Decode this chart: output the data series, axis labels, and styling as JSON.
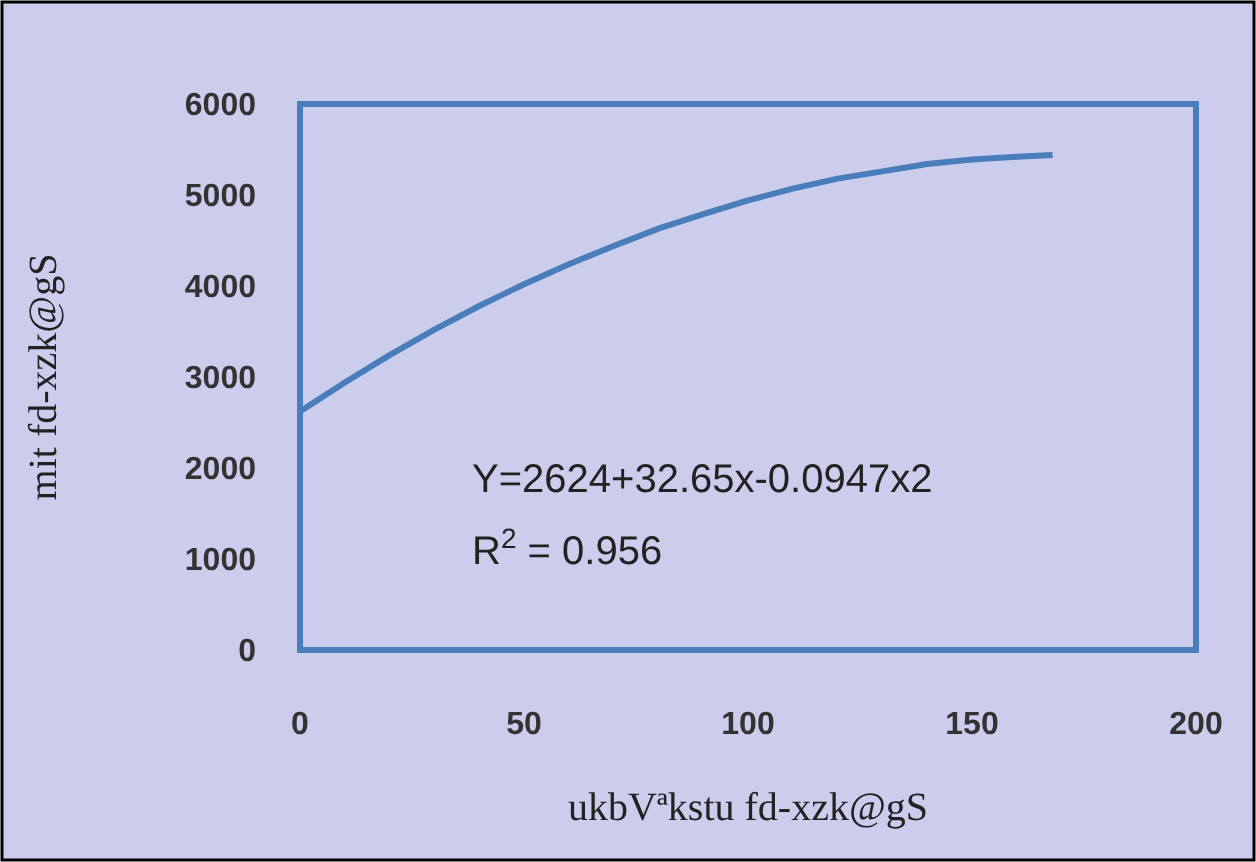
{
  "chart_data": {
    "type": "line",
    "xlabel": "ukbVªkstu fd-xzk@gS",
    "ylabel": "mit fd-xzk@gS",
    "x": [
      0,
      10,
      20,
      30,
      40,
      50,
      60,
      70,
      80,
      90,
      100,
      110,
      120,
      130,
      140,
      150,
      160,
      168
    ],
    "series": [
      {
        "color": "#4a7ebb",
        "values": [
          2620,
          2940,
          3240,
          3520,
          3780,
          4020,
          4240,
          4440,
          4630,
          4790,
          4940,
          5070,
          5180,
          5260,
          5340,
          5390,
          5420,
          5440
        ]
      }
    ],
    "xlim": [
      0,
      200
    ],
    "ylim": [
      0,
      6000
    ],
    "xticks": [
      0,
      50,
      100,
      150,
      200
    ],
    "yticks": [
      0,
      1000,
      2000,
      3000,
      4000,
      5000,
      6000
    ],
    "grid": false,
    "line_style": "solid",
    "marker": "none",
    "annotations": [
      "Y=2624+32.65x-0.0947x2",
      "R$^{2}$ = 0.956"
    ]
  }
}
